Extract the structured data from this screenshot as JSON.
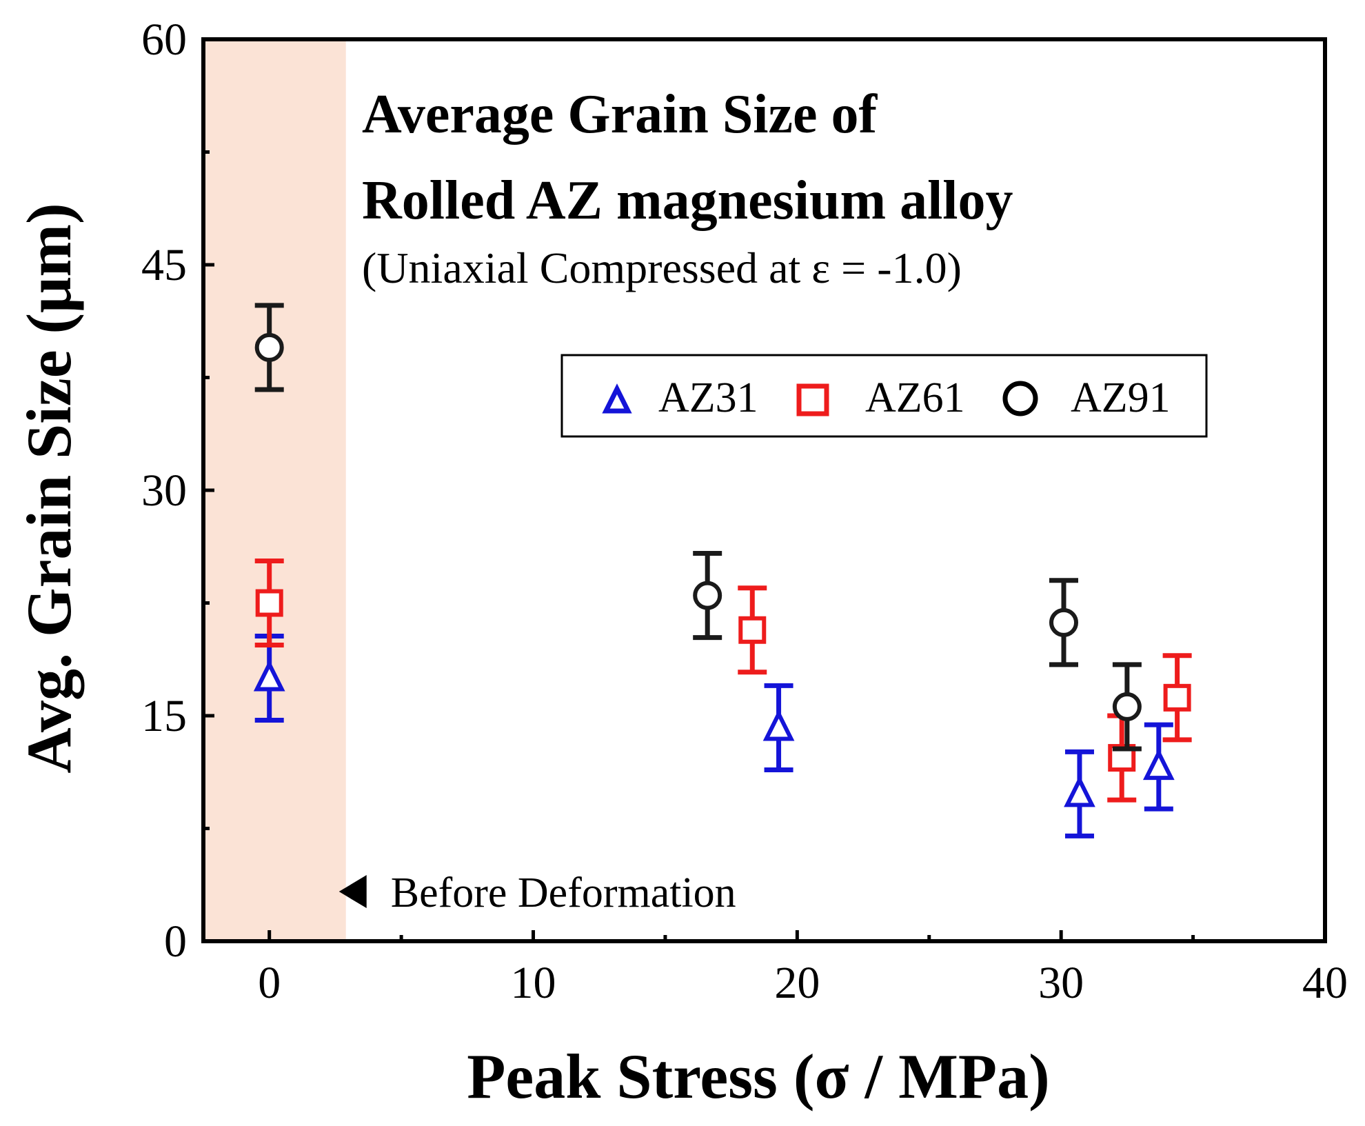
{
  "chart_data": {
    "type": "scatter",
    "title": "Average Grain Size of",
    "title_line2": "Rolled AZ magnesium alloy",
    "subtitle": "(Uniaxial Compressed at ε = -1.0)",
    "xlabel": "Peak Stress (σ / MPa)",
    "ylabel": "Avg. Grain Size (μm)",
    "xlim": [
      -2.5,
      40
    ],
    "ylim": [
      0,
      60
    ],
    "x_ticks": [
      0,
      10,
      20,
      30,
      40
    ],
    "x_tick_labels": [
      "0",
      "10",
      "20",
      "30",
      "40"
    ],
    "y_ticks": [
      0,
      15,
      30,
      45,
      60
    ],
    "y_tick_labels": [
      "0",
      "15",
      "30",
      "45",
      "60"
    ],
    "grid": false,
    "legend_position": "center-right",
    "shaded_region": {
      "x_range": [
        -2.5,
        2.9
      ],
      "color": "#fbe3d6"
    },
    "annotation": {
      "text": "Before Deformation",
      "x": 2.9,
      "y": 3.3,
      "marker": "left-triangle"
    },
    "series": [
      {
        "name": "AZ31",
        "marker": "triangle",
        "color": "#1414d8",
        "x": [
          0,
          19.3,
          30.7,
          33.7
        ],
        "y": [
          17.5,
          14.2,
          9.8,
          11.6
        ],
        "err": [
          2.8,
          2.8,
          2.8,
          2.8
        ]
      },
      {
        "name": "AZ61",
        "marker": "square",
        "color": "#ee1c1c",
        "x": [
          0,
          18.3,
          32.3,
          34.4
        ],
        "y": [
          22.5,
          20.7,
          12.2,
          16.2
        ],
        "err": [
          2.8,
          2.8,
          2.8,
          2.8
        ]
      },
      {
        "name": "AZ91",
        "marker": "circle",
        "color": "#1a1a1a",
        "x": [
          0,
          16.6,
          30.1,
          32.5
        ],
        "y": [
          39.5,
          23.0,
          21.2,
          15.6
        ],
        "err": [
          2.8,
          2.8,
          2.8,
          2.8
        ]
      }
    ]
  }
}
